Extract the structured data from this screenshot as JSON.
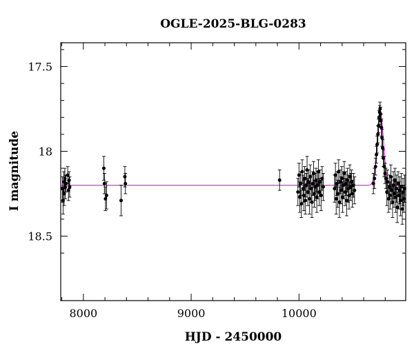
{
  "chart_data": {
    "type": "scatter",
    "title": "OGLE-2025-BLG-0283",
    "xlabel": "HJD - 2450000",
    "ylabel": "I magnitude",
    "xlim": [
      7790,
      10990
    ],
    "ylim": [
      18.88,
      17.36
    ],
    "y_inverted": true,
    "grid": false,
    "legend": "none",
    "x_ticks": [
      8000,
      9000,
      10000
    ],
    "y_ticks": [
      17.5,
      18,
      18.5
    ],
    "x_tick_labels": [
      "8000",
      "9000",
      "10000"
    ],
    "y_tick_labels": [
      "17.5",
      "18",
      "18.5"
    ],
    "colors": {
      "points": "#000000",
      "model": "#e040e0"
    },
    "model": {
      "baseline": 18.2,
      "t0": 10755,
      "peak": 17.78,
      "width": 42
    },
    "series": [
      {
        "kind": "points",
        "points": [
          [
            7805,
            18.22,
            0.07
          ],
          [
            7812,
            18.29,
            0.08
          ],
          [
            7818,
            18.18,
            0.06
          ],
          [
            7822,
            18.25,
            0.07
          ],
          [
            7828,
            18.16,
            0.06
          ],
          [
            7833,
            18.21,
            0.07
          ],
          [
            7838,
            18.19,
            0.05
          ],
          [
            7855,
            18.14,
            0.05
          ],
          [
            7862,
            18.23,
            0.06
          ],
          [
            7868,
            18.17,
            0.05
          ],
          [
            7873,
            18.21,
            0.06
          ],
          [
            8190,
            18.1,
            0.07
          ],
          [
            8195,
            18.19,
            0.06
          ],
          [
            8205,
            18.28,
            0.07
          ],
          [
            8215,
            18.26,
            0.08
          ],
          [
            8350,
            18.29,
            0.09
          ],
          [
            8385,
            18.15,
            0.06
          ],
          [
            8390,
            18.19,
            0.06
          ],
          [
            9820,
            18.17,
            0.06
          ],
          [
            9990,
            18.24,
            0.08
          ],
          [
            10000,
            18.14,
            0.07
          ],
          [
            10008,
            18.27,
            0.09
          ],
          [
            10015,
            18.19,
            0.07
          ],
          [
            10022,
            18.31,
            0.08
          ],
          [
            10030,
            18.12,
            0.07
          ],
          [
            10038,
            18.22,
            0.08
          ],
          [
            10045,
            18.26,
            0.09
          ],
          [
            10052,
            18.16,
            0.07
          ],
          [
            10060,
            18.29,
            0.08
          ],
          [
            10068,
            18.2,
            0.07
          ],
          [
            10075,
            18.11,
            0.08
          ],
          [
            10082,
            18.24,
            0.08
          ],
          [
            10090,
            18.18,
            0.07
          ],
          [
            10098,
            18.28,
            0.09
          ],
          [
            10105,
            18.15,
            0.07
          ],
          [
            10112,
            18.22,
            0.08
          ],
          [
            10120,
            18.3,
            0.09
          ],
          [
            10128,
            18.19,
            0.07
          ],
          [
            10135,
            18.13,
            0.07
          ],
          [
            10142,
            18.25,
            0.08
          ],
          [
            10150,
            18.21,
            0.08
          ],
          [
            10158,
            18.17,
            0.07
          ],
          [
            10165,
            18.27,
            0.09
          ],
          [
            10172,
            18.2,
            0.08
          ],
          [
            10180,
            18.12,
            0.07
          ],
          [
            10188,
            18.24,
            0.08
          ],
          [
            10195,
            18.18,
            0.07
          ],
          [
            10205,
            18.26,
            0.09
          ],
          [
            10215,
            18.16,
            0.07
          ],
          [
            10225,
            18.21,
            0.08
          ],
          [
            10330,
            18.22,
            0.08
          ],
          [
            10338,
            18.14,
            0.07
          ],
          [
            10345,
            18.28,
            0.09
          ],
          [
            10352,
            18.19,
            0.07
          ],
          [
            10360,
            18.25,
            0.08
          ],
          [
            10368,
            18.12,
            0.07
          ],
          [
            10375,
            18.3,
            0.09
          ],
          [
            10382,
            18.18,
            0.07
          ],
          [
            10390,
            18.23,
            0.08
          ],
          [
            10398,
            18.16,
            0.07
          ],
          [
            10405,
            18.27,
            0.09
          ],
          [
            10412,
            18.2,
            0.08
          ],
          [
            10420,
            18.13,
            0.07
          ],
          [
            10428,
            18.24,
            0.08
          ],
          [
            10435,
            18.19,
            0.07
          ],
          [
            10442,
            18.29,
            0.09
          ],
          [
            10450,
            18.17,
            0.07
          ],
          [
            10458,
            18.22,
            0.08
          ],
          [
            10465,
            18.26,
            0.08
          ],
          [
            10472,
            18.15,
            0.07
          ],
          [
            10480,
            18.21,
            0.08
          ],
          [
            10488,
            18.18,
            0.07
          ],
          [
            10495,
            18.25,
            0.08
          ],
          [
            10505,
            18.2,
            0.07
          ],
          [
            10515,
            18.23,
            0.08
          ],
          [
            10690,
            18.19,
            0.06
          ],
          [
            10700,
            18.16,
            0.06
          ],
          [
            10710,
            18.09,
            0.05
          ],
          [
            10718,
            18.02,
            0.05
          ],
          [
            10725,
            17.96,
            0.05
          ],
          [
            10732,
            17.9,
            0.05
          ],
          [
            10738,
            17.85,
            0.04
          ],
          [
            10743,
            17.8,
            0.04
          ],
          [
            10748,
            17.77,
            0.04
          ],
          [
            10752,
            17.75,
            0.04
          ],
          [
            10756,
            17.78,
            0.04
          ],
          [
            10760,
            17.82,
            0.04
          ],
          [
            10765,
            17.86,
            0.05
          ],
          [
            10770,
            17.92,
            0.05
          ],
          [
            10776,
            17.98,
            0.05
          ],
          [
            10782,
            18.04,
            0.05
          ],
          [
            10790,
            18.09,
            0.06
          ],
          [
            10798,
            18.13,
            0.06
          ],
          [
            10806,
            18.16,
            0.06
          ],
          [
            10815,
            18.24,
            0.08
          ],
          [
            10822,
            18.18,
            0.07
          ],
          [
            10830,
            18.28,
            0.08
          ],
          [
            10838,
            18.21,
            0.07
          ],
          [
            10845,
            18.26,
            0.08
          ],
          [
            10852,
            18.15,
            0.07
          ],
          [
            10860,
            18.23,
            0.08
          ],
          [
            10868,
            18.3,
            0.09
          ],
          [
            10875,
            18.2,
            0.08
          ],
          [
            10882,
            18.25,
            0.08
          ],
          [
            10890,
            18.17,
            0.07
          ],
          [
            10898,
            18.27,
            0.09
          ],
          [
            10905,
            18.22,
            0.08
          ],
          [
            10912,
            18.33,
            0.09
          ],
          [
            10920,
            18.19,
            0.07
          ],
          [
            10928,
            18.26,
            0.08
          ],
          [
            10935,
            18.23,
            0.08
          ],
          [
            10942,
            18.29,
            0.09
          ],
          [
            10950,
            18.21,
            0.08
          ],
          [
            10958,
            18.34,
            0.09
          ],
          [
            10965,
            18.24,
            0.08
          ],
          [
            10972,
            18.28,
            0.08
          ],
          [
            10980,
            18.22,
            0.08
          ]
        ]
      }
    ]
  }
}
